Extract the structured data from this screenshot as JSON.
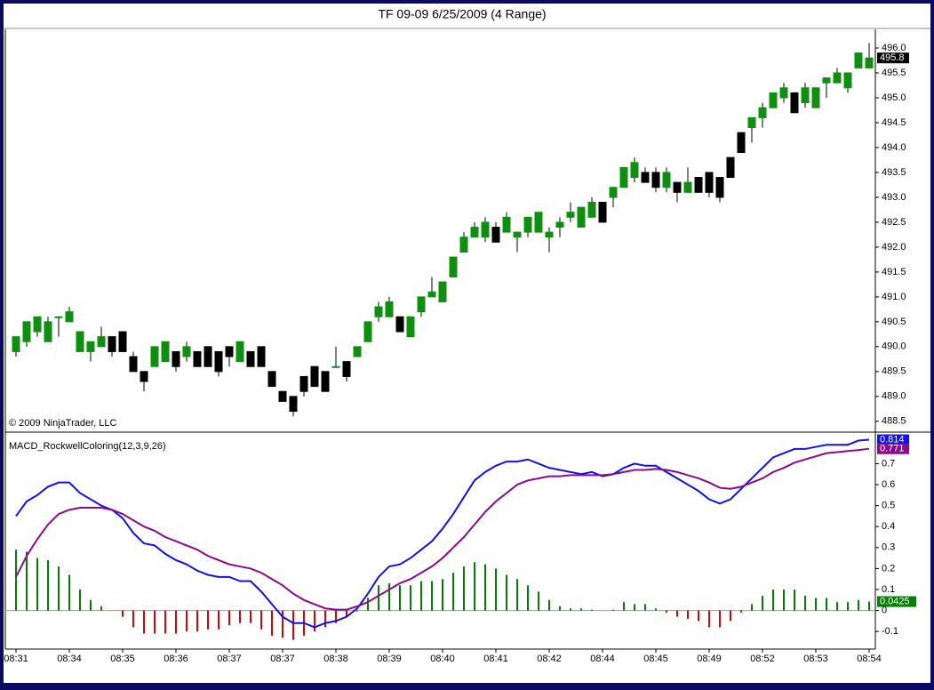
{
  "title": "TF 09-09  6/25/2009 (4 Range)",
  "copyright": "© 2009 NinjaTrader, LLC",
  "chart_data": [
    {
      "type": "candlestick",
      "up_color": "#0f8f0f",
      "down_color": "#000000",
      "open": [
        489.9,
        490.1,
        490.3,
        490.1,
        490.6,
        490.5,
        489.9,
        489.9,
        490.0,
        490.2,
        490.3,
        489.8,
        489.5,
        489.6,
        489.7,
        489.9,
        489.8,
        489.9,
        490.0,
        489.9,
        490.0,
        489.7,
        489.9,
        490.0,
        489.5,
        489.1,
        489.0,
        489.4,
        489.6,
        489.5,
        489.6,
        489.7,
        489.8,
        490.1,
        490.6,
        490.6,
        490.6,
        490.2,
        490.7,
        491.0,
        490.9,
        491.4,
        491.9,
        492.2,
        492.2,
        492.4,
        492.3,
        492.2,
        492.3,
        492.3,
        492.2,
        492.4,
        492.6,
        492.4,
        492.6,
        492.9,
        493.0,
        493.2,
        493.4,
        493.5,
        493.5,
        493.2,
        493.3,
        493.1,
        493.4,
        493.5,
        493.4,
        493.8,
        494.3,
        494.4,
        494.6,
        494.8,
        495.0,
        495.1,
        494.9,
        494.8,
        495.3,
        495.3,
        495.2,
        495.6,
        495.6
      ],
      "high": [
        490.2,
        490.5,
        490.6,
        490.6,
        490.6,
        490.8,
        490.3,
        490.1,
        490.4,
        490.2,
        490.3,
        489.9,
        489.5,
        490.0,
        490.1,
        489.9,
        490.1,
        489.9,
        490.0,
        489.9,
        490.0,
        490.1,
        489.9,
        490.0,
        489.5,
        489.1,
        489.0,
        489.4,
        489.6,
        489.5,
        490.0,
        489.7,
        490.0,
        490.5,
        490.9,
        491.0,
        490.6,
        490.6,
        491.0,
        491.4,
        491.3,
        491.8,
        492.3,
        492.5,
        492.6,
        492.5,
        492.7,
        492.3,
        492.6,
        492.7,
        492.4,
        492.6,
        492.9,
        492.8,
        493.0,
        492.9,
        493.2,
        493.6,
        493.8,
        493.6,
        493.6,
        493.6,
        493.3,
        493.6,
        493.4,
        493.5,
        493.4,
        493.8,
        494.3,
        494.6,
        494.9,
        495.1,
        495.3,
        495.1,
        495.3,
        495.2,
        495.4,
        495.6,
        495.5,
        495.9,
        496.1
      ],
      "low": [
        489.8,
        490.0,
        490.2,
        490.1,
        490.2,
        490.5,
        489.9,
        489.7,
        490.0,
        489.8,
        489.9,
        489.5,
        489.1,
        489.6,
        489.7,
        489.5,
        489.7,
        489.6,
        489.6,
        489.4,
        489.6,
        489.7,
        489.6,
        489.6,
        489.2,
        488.9,
        488.6,
        489.0,
        489.2,
        489.1,
        489.6,
        489.3,
        489.8,
        490.1,
        490.5,
        490.6,
        490.3,
        490.2,
        490.6,
        491.0,
        490.9,
        491.4,
        491.9,
        492.2,
        492.1,
        492.1,
        492.3,
        491.9,
        492.2,
        492.3,
        491.9,
        492.2,
        492.5,
        492.4,
        492.6,
        492.5,
        492.8,
        493.2,
        493.3,
        493.3,
        493.1,
        493.1,
        492.9,
        493.1,
        493.1,
        493.0,
        492.9,
        493.4,
        493.9,
        494.1,
        494.4,
        494.8,
        494.9,
        494.7,
        494.8,
        494.8,
        495.0,
        495.3,
        495.1,
        495.6,
        495.6
      ],
      "close": [
        490.2,
        490.5,
        490.6,
        490.5,
        490.6,
        490.7,
        490.3,
        490.1,
        490.2,
        489.9,
        489.9,
        489.5,
        489.3,
        490.0,
        490.1,
        489.6,
        490.0,
        489.6,
        489.6,
        489.5,
        489.8,
        490.1,
        489.6,
        489.6,
        489.2,
        488.9,
        488.7,
        489.1,
        489.2,
        489.1,
        489.6,
        489.4,
        490.0,
        490.5,
        490.8,
        490.9,
        490.3,
        490.6,
        491.0,
        491.1,
        491.3,
        491.8,
        492.2,
        492.4,
        492.5,
        492.1,
        492.6,
        492.3,
        492.6,
        492.7,
        492.3,
        492.5,
        492.7,
        492.8,
        492.9,
        492.5,
        493.2,
        493.6,
        493.7,
        493.3,
        493.2,
        493.5,
        493.1,
        493.3,
        493.1,
        493.1,
        493.0,
        493.4,
        493.9,
        494.6,
        494.8,
        495.1,
        495.2,
        494.7,
        495.2,
        495.2,
        495.4,
        495.5,
        495.5,
        495.9,
        495.8
      ],
      "ylim": [
        488.3,
        496.375
      ],
      "yticks": [
        {
          "value": 488.5,
          "label": "488.5"
        },
        {
          "value": 489,
          "label": "489.0"
        },
        {
          "value": 489.5,
          "label": "489.5"
        },
        {
          "value": 490,
          "label": "490.0"
        },
        {
          "value": 490.5,
          "label": "490.5"
        },
        {
          "value": 491,
          "label": "491.0"
        },
        {
          "value": 491.5,
          "label": "491.5"
        },
        {
          "value": 492,
          "label": "492.0"
        },
        {
          "value": 492.5,
          "label": "492.5"
        },
        {
          "value": 493,
          "label": "493.0"
        },
        {
          "value": 493.5,
          "label": "493.5"
        },
        {
          "value": 494,
          "label": "494.0"
        },
        {
          "value": 494.5,
          "label": "494.5"
        },
        {
          "value": 495,
          "label": "495.0"
        },
        {
          "value": 495.5,
          "label": "495.5"
        },
        {
          "value": 496,
          "label": "496.0"
        }
      ]
    },
    {
      "type": "macd",
      "title": "MACD_RockwellColoring(12,3,9,26)",
      "categories": [
        "08:31",
        null,
        null,
        null,
        null,
        "08:34",
        null,
        null,
        null,
        null,
        "08:35",
        null,
        null,
        null,
        null,
        "08:36",
        null,
        null,
        null,
        null,
        "08:37",
        null,
        null,
        null,
        null,
        "08:37",
        null,
        null,
        null,
        null,
        "08:38",
        null,
        null,
        null,
        null,
        "08:39",
        null,
        null,
        null,
        null,
        "08:40",
        null,
        null,
        null,
        null,
        "08:41",
        null,
        null,
        null,
        null,
        "08:42",
        null,
        null,
        null,
        null,
        "08:44",
        null,
        null,
        null,
        null,
        "08:45",
        null,
        null,
        null,
        null,
        "08:49",
        null,
        null,
        null,
        null,
        "08:52",
        null,
        null,
        null,
        null,
        "08:53",
        null,
        null,
        null,
        null,
        "08:54"
      ],
      "series": [
        {
          "color": "#1010ee",
          "values": [
            0.45,
            0.52,
            0.55,
            0.59,
            0.61,
            0.61,
            0.56,
            0.53,
            0.5,
            0.48,
            0.44,
            0.37,
            0.32,
            0.31,
            0.27,
            0.24,
            0.22,
            0.19,
            0.17,
            0.16,
            0.16,
            0.14,
            0.14,
            0.09,
            0.03,
            -0.03,
            -0.06,
            -0.06,
            -0.08,
            -0.06,
            -0.05,
            -0.03,
            0.01,
            0.08,
            0.16,
            0.21,
            0.22,
            0.25,
            0.29,
            0.33,
            0.39,
            0.46,
            0.54,
            0.62,
            0.66,
            0.69,
            0.71,
            0.71,
            0.72,
            0.7,
            0.68,
            0.67,
            0.66,
            0.65,
            0.66,
            0.64,
            0.65,
            0.68,
            0.7,
            0.69,
            0.69,
            0.66,
            0.63,
            0.6,
            0.57,
            0.53,
            0.51,
            0.53,
            0.58,
            0.63,
            0.68,
            0.73,
            0.75,
            0.77,
            0.77,
            0.78,
            0.79,
            0.79,
            0.79,
            0.81,
            0.814
          ]
        },
        {
          "color": "#8b0a8b",
          "values": [
            0.16,
            0.26,
            0.34,
            0.41,
            0.46,
            0.48,
            0.49,
            0.49,
            0.49,
            0.48,
            0.46,
            0.43,
            0.4,
            0.38,
            0.35,
            0.33,
            0.31,
            0.29,
            0.26,
            0.24,
            0.22,
            0.21,
            0.2,
            0.18,
            0.15,
            0.12,
            0.08,
            0.05,
            0.03,
            0.01,
            0.004,
            0.004,
            0.02,
            0.04,
            0.07,
            0.1,
            0.13,
            0.15,
            0.18,
            0.21,
            0.25,
            0.3,
            0.35,
            0.41,
            0.47,
            0.52,
            0.56,
            0.6,
            0.62,
            0.63,
            0.64,
            0.64,
            0.645,
            0.645,
            0.645,
            0.645,
            0.65,
            0.66,
            0.67,
            0.67,
            0.675,
            0.67,
            0.66,
            0.645,
            0.63,
            0.61,
            0.585,
            0.58,
            0.59,
            0.61,
            0.63,
            0.66,
            0.68,
            0.705,
            0.72,
            0.735,
            0.75,
            0.755,
            0.76,
            0.765,
            0.771
          ]
        }
      ],
      "histogram": {
        "up_color": "#008000",
        "down_color": "#e00000",
        "values": [
          0.29,
          0.28,
          0.25,
          0.24,
          0.21,
          0.17,
          0.1,
          0.05,
          0.02,
          0,
          -0.03,
          -0.08,
          -0.11,
          -0.11,
          -0.11,
          -0.11,
          -0.1,
          -0.1,
          -0.09,
          -0.09,
          -0.07,
          -0.06,
          -0.06,
          -0.09,
          -0.12,
          -0.13,
          -0.14,
          -0.12,
          -0.1,
          -0.08,
          -0.06,
          -0.03,
          -0.005,
          0.06,
          0.12,
          0.13,
          0.12,
          0.12,
          0.14,
          0.14,
          0.15,
          0.18,
          0.21,
          0.23,
          0.22,
          0.2,
          0.17,
          0.15,
          0.12,
          0.09,
          0.05,
          0.02,
          0.01,
          0.01,
          0.004,
          0,
          0.004,
          0.04,
          0.03,
          0.03,
          0.01,
          -0.01,
          -0.03,
          -0.04,
          -0.05,
          -0.08,
          -0.08,
          -0.05,
          -0.01,
          0.03,
          0.07,
          0.1,
          0.1,
          0.1,
          0.07,
          0.06,
          0.06,
          0.04,
          0.04,
          0.05,
          0.0425
        ]
      },
      "ylim": [
        -0.184,
        0.846
      ],
      "yticks": [
        -0.1,
        0,
        0.1,
        0.2,
        0.3,
        0.4,
        0.5,
        0.6,
        0.7
      ]
    }
  ]
}
